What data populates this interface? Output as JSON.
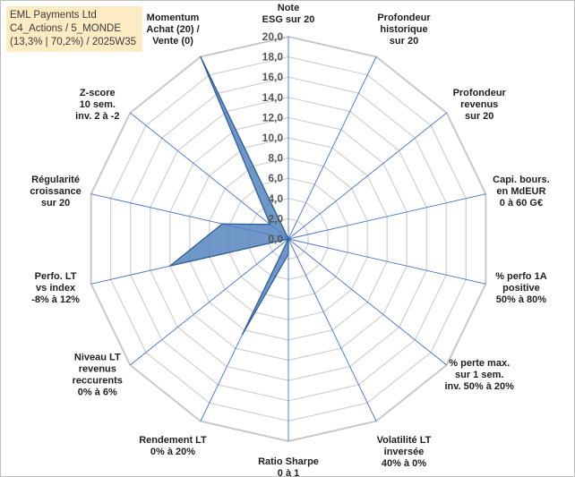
{
  "header": {
    "line1": "EML Payments Ltd",
    "line2": "C4_Actions / 5_MONDE",
    "line3": "(13,3% | 70,2%) / 2025W35"
  },
  "chart_data": {
    "type": "radar",
    "rmin": 0,
    "rmax": 20,
    "tick_step": 2,
    "tick_labels": [
      "0,0",
      "2,0",
      "4,0",
      "6,0",
      "8,0",
      "10,0",
      "12,0",
      "14,0",
      "16,0",
      "18,0",
      "20,0"
    ],
    "axes": [
      [
        "Note",
        "ESG sur 20"
      ],
      [
        "Profondeur",
        "historique",
        "sur 20"
      ],
      [
        "Profondeur",
        "revenus",
        "sur 20"
      ],
      [
        "Capi. bours.",
        "en MdEUR",
        "0 à 60 G€"
      ],
      [
        "% perfo 1A",
        "positive",
        "50% à 80%"
      ],
      [
        "% perte max.",
        "sur 1 sem.",
        "inv. 50% à 20%"
      ],
      [
        "Volatilité LT",
        "inversée",
        "40% à 0%"
      ],
      [
        "Ratio Sharpe",
        "0 à 1"
      ],
      [
        "Rendement LT",
        "0% à 20%"
      ],
      [
        "Niveau LT",
        "revenus",
        "reccurents",
        "0% à 6%"
      ],
      [
        "Perfo. LT",
        "vs index",
        "-8% à 12%"
      ],
      [
        "Régularité",
        "croissance",
        "sur 20"
      ],
      [
        "Z-score",
        "10 sem.",
        "inv. 2 à -2"
      ],
      [
        "Momentum",
        "Achat (20) /",
        "Vente (0)"
      ]
    ],
    "values": [
      0,
      0,
      0,
      0,
      0,
      0,
      0,
      1.5,
      10.5,
      0,
      12,
      6.7,
      2.3,
      20
    ],
    "colors": {
      "fill": "#4f81bd",
      "stroke": "#2f5d9a",
      "grid": "#d0d0d0",
      "spoke": "#4472c4"
    }
  }
}
